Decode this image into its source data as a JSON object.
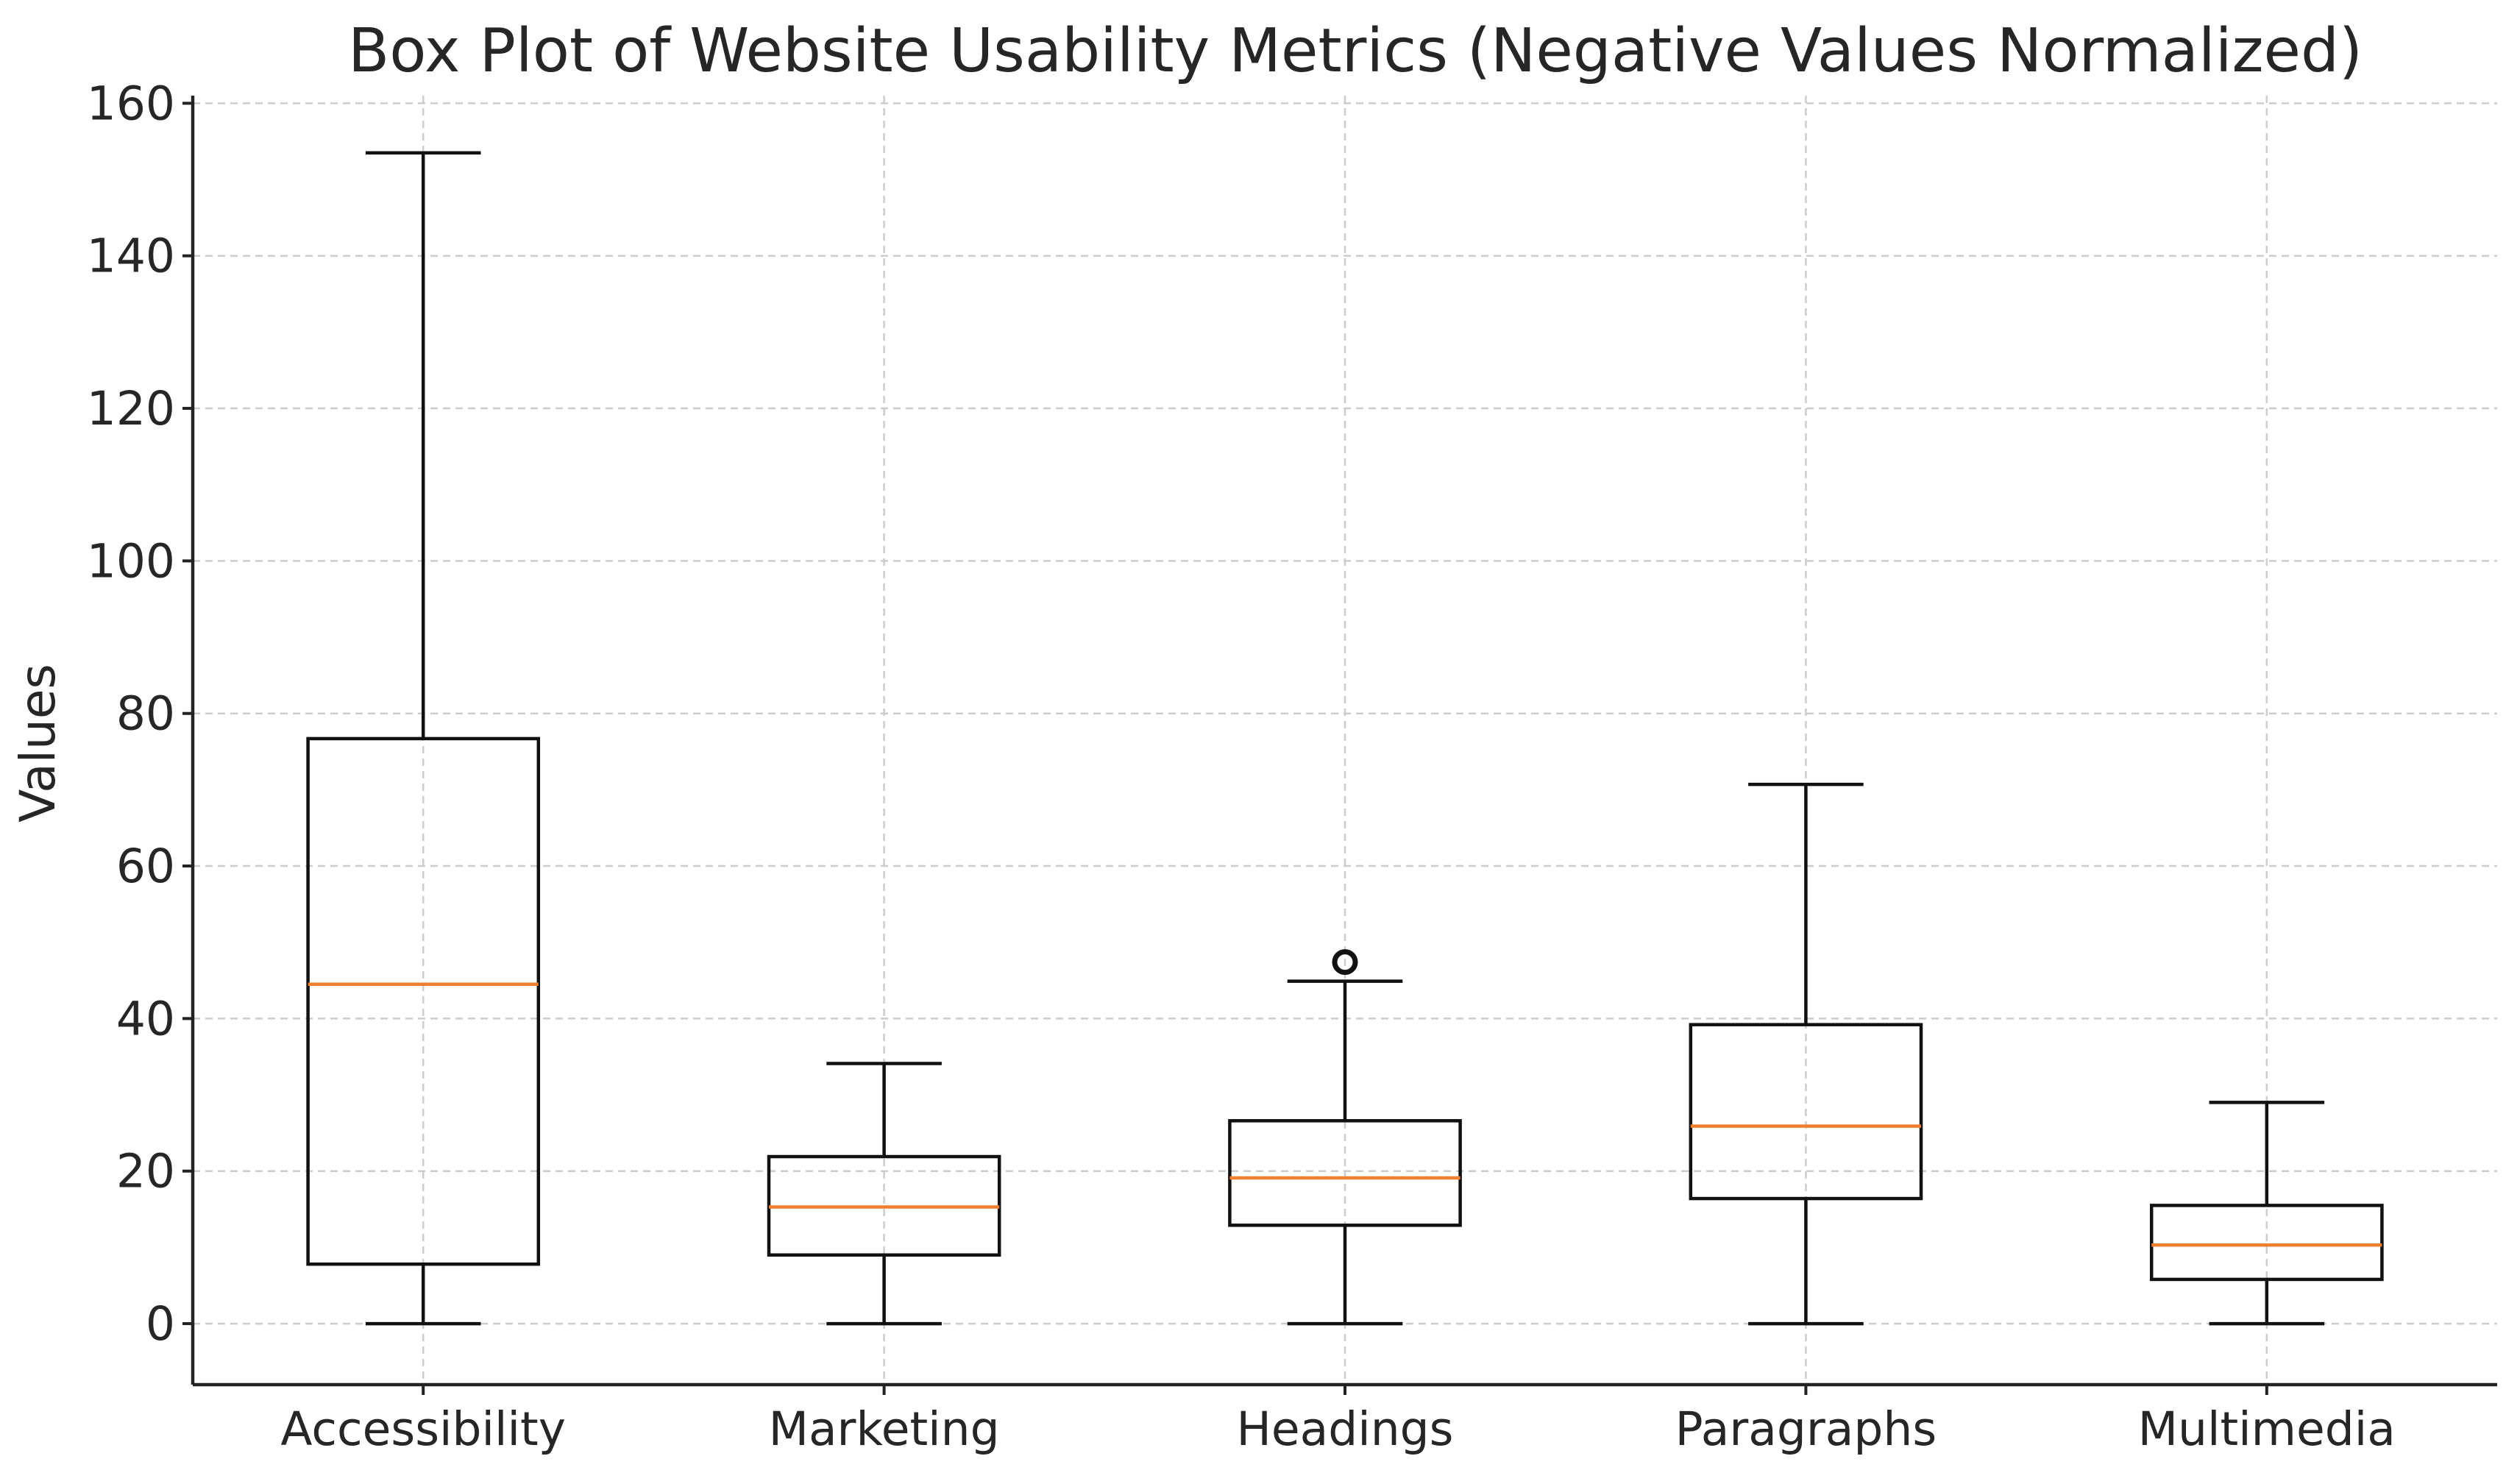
{
  "chart_data": {
    "type": "box",
    "title": "Box Plot of Website Usability Metrics (Negative Values Normalized)",
    "xlabel": "",
    "ylabel": "Values",
    "ylim": [
      -8,
      161
    ],
    "yticks": [
      0,
      20,
      40,
      60,
      80,
      100,
      120,
      140,
      160
    ],
    "grid": true,
    "categories": [
      "Accessibility",
      "Marketing",
      "Headings",
      "Paragraphs",
      "Multimedia"
    ],
    "series": [
      {
        "name": "Accessibility",
        "whisker_low": 0,
        "q1": 7.8,
        "median": 44.5,
        "q3": 76.7,
        "whisker_high": 153.5,
        "outliers": []
      },
      {
        "name": "Marketing",
        "whisker_low": 0,
        "q1": 9.0,
        "median": 15.3,
        "q3": 21.9,
        "whisker_high": 34.1,
        "outliers": []
      },
      {
        "name": "Headings",
        "whisker_low": 0,
        "q1": 12.9,
        "median": 19.1,
        "q3": 26.6,
        "whisker_high": 44.9,
        "outliers": [
          47.4
        ]
      },
      {
        "name": "Paragraphs",
        "whisker_low": 0,
        "q1": 16.4,
        "median": 25.9,
        "q3": 39.2,
        "whisker_high": 70.7,
        "outliers": []
      },
      {
        "name": "Multimedia",
        "whisker_low": 0,
        "q1": 5.8,
        "median": 10.3,
        "q3": 15.5,
        "whisker_high": 29.0,
        "outliers": []
      }
    ],
    "colors": {
      "box": "#111111",
      "median": "#f07f2f",
      "grid": "#cccccc"
    }
  }
}
